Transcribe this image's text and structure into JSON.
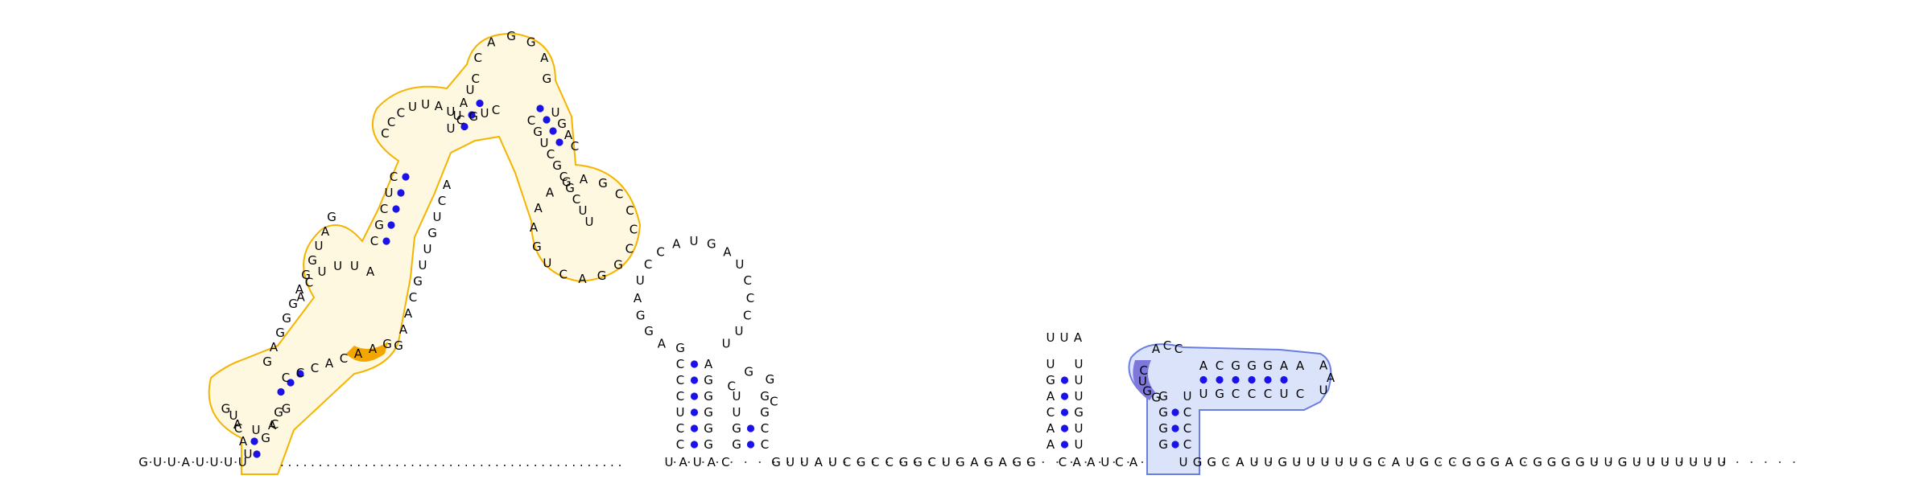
{
  "colors": {
    "outline_orange": "#f4b400",
    "fill_orange_strong": "#f4a600",
    "outline_blue": "#6a7ee0",
    "fill_blue_light": "#dbe3fb",
    "fill_purple": "#7f78dc",
    "pair_dot": "#1a12e6"
  },
  "sequence": {
    "left_tail": [
      "G",
      "U",
      "U",
      "A",
      "U",
      "U",
      "U",
      "U"
    ],
    "dotted_linker": ". . . . . . . . . . . . . . . . . . . . . . . . . . . . . . . . . . . . . . . . . . . . .",
    "middle_run": [
      "U",
      "A",
      "U",
      "A",
      "C"
    ],
    "run2": [
      "G",
      "U",
      "U",
      "A",
      "U",
      "C",
      "G",
      "C",
      "C",
      "G",
      "G",
      "C",
      "U",
      "G",
      "A",
      "G",
      "A",
      "G",
      "G"
    ],
    "run3": [
      "C",
      "A",
      "A",
      "U",
      "C",
      "A"
    ],
    "right_tail": [
      "U",
      "G",
      "G",
      "C",
      "A",
      "U",
      "U",
      "G",
      "U",
      "U",
      "U",
      "U",
      "U",
      "G",
      "C",
      "A",
      "U",
      "G",
      "C",
      "C",
      "G",
      "G",
      "G",
      "A",
      "C",
      "G",
      "G",
      "G",
      "G",
      "U",
      "U",
      "G",
      "U",
      "U",
      "U",
      "U",
      "U",
      "U",
      "U"
    ]
  },
  "hairpin_orange": {
    "stem_low_left": [
      "U",
      "A",
      "C",
      "U"
    ],
    "stem_low_right": [
      "G",
      "A",
      "G"
    ],
    "loop_small": [
      "G",
      "A",
      "U",
      "C",
      "G"
    ],
    "arm_left": [
      "G",
      "A",
      "G",
      "G",
      "G",
      "A",
      "G",
      "G",
      "U",
      "A",
      "G"
    ],
    "arm_right": [
      "C",
      "C",
      "C",
      "A",
      "C",
      "A",
      "A",
      "G"
    ],
    "mid_left": [
      "A",
      "C",
      "U",
      "U",
      "U",
      "A",
      "C",
      "G",
      "C",
      "U",
      "C"
    ],
    "mid_right": [
      "G",
      "A",
      "A",
      "C",
      "G",
      "U",
      "U",
      "G",
      "U",
      "C",
      "A"
    ],
    "top_left": [
      "C",
      "C",
      "C",
      "U",
      "U",
      "A",
      "U",
      "C"
    ],
    "top_loop": [
      "C",
      "C",
      "A",
      "G",
      "G",
      "A",
      "G"
    ],
    "right_arm": [
      "C",
      "G",
      "U",
      "C",
      "G",
      "C",
      "G",
      "C",
      "U",
      "U"
    ],
    "right_loop": [
      "A",
      "G",
      "C",
      "C",
      "C",
      "C",
      "G",
      "G",
      "A",
      "C",
      "U",
      "G",
      "A",
      "A",
      "A",
      "G"
    ]
  },
  "hairpin_center": {
    "stem_left": [
      "C",
      "C",
      "U",
      "C",
      "C",
      "C",
      "G"
    ],
    "stem_right": [
      "G",
      "G",
      "G",
      "G",
      "G",
      "A"
    ],
    "loop": [
      "A",
      "G",
      "G",
      "A",
      "U",
      "C",
      "C",
      "A",
      "U",
      "G",
      "A",
      "U",
      "C",
      "C",
      "C",
      "U",
      "U"
    ],
    "small_stem_left": [
      "G",
      "G",
      "U",
      "U"
    ],
    "small_stem_right": [
      "C",
      "C",
      "G",
      "G"
    ],
    "small_loop": [
      "C",
      "G",
      "G",
      "C"
    ]
  },
  "hairpin_small_right": {
    "stem_left": [
      "A",
      "A",
      "C",
      "A",
      "G",
      "U"
    ],
    "stem_right": [
      "U",
      "U",
      "G",
      "U",
      "U",
      "U"
    ],
    "loop": [
      "U",
      "U",
      "A"
    ]
  },
  "hairpin_blue": {
    "vstem_left": [
      "G",
      "G",
      "G",
      "G"
    ],
    "vstem_right": [
      "C",
      "C",
      "C",
      "U"
    ],
    "loop_left": [
      "G",
      "G",
      "U",
      "C"
    ],
    "loop_top": [
      "A",
      "C",
      "C"
    ],
    "hstem_top": [
      "A",
      "C",
      "G",
      "G",
      "G",
      "A",
      "A"
    ],
    "hstem_bottom": [
      "U",
      "G",
      "C",
      "C",
      "C",
      "U",
      "C"
    ],
    "hloop": [
      "A",
      "A",
      "U"
    ]
  }
}
